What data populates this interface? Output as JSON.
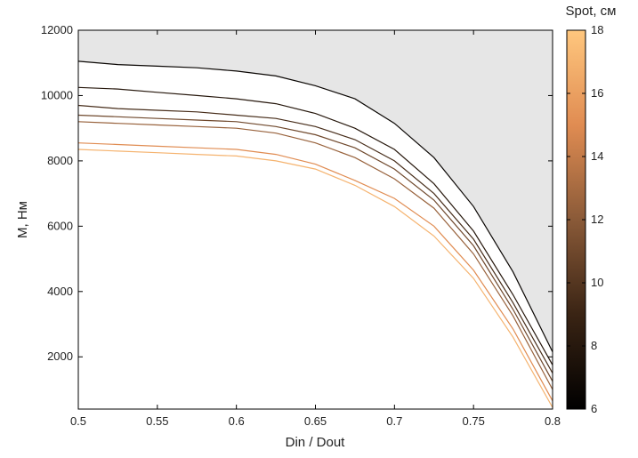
{
  "chart_data": {
    "type": "line",
    "xlabel": "Din / Dout",
    "ylabel": "M, Нм",
    "xlim": [
      0.5,
      0.8
    ],
    "ylim": [
      400,
      12000
    ],
    "xticks": [
      "0.5",
      "0.55",
      "0.6",
      "0.65",
      "0.7",
      "0.75",
      "0.8"
    ],
    "yticks": [
      "2000",
      "4000",
      "6000",
      "8000",
      "10000",
      "12000"
    ],
    "grid": false,
    "colorbar": {
      "title": "Spot, см",
      "min": 6,
      "max": 18,
      "ticks": [
        "6",
        "8",
        "10",
        "12",
        "14",
        "16",
        "18"
      ]
    },
    "x": [
      0.5,
      0.525,
      0.55,
      0.575,
      0.6,
      0.625,
      0.65,
      0.675,
      0.7,
      0.725,
      0.75,
      0.775,
      0.8
    ],
    "series": [
      {
        "color_value": 6.5,
        "values": [
          11050,
          10950,
          10900,
          10850,
          10750,
          10600,
          10300,
          9900,
          9150,
          8100,
          6600,
          4600,
          2150
        ]
      },
      {
        "color_value": 8.0,
        "values": [
          10250,
          10200,
          10100,
          10000,
          9900,
          9750,
          9450,
          9000,
          8350,
          7300,
          5850,
          3900,
          1750
        ]
      },
      {
        "color_value": 9.5,
        "values": [
          9700,
          9600,
          9550,
          9500,
          9400,
          9300,
          9050,
          8650,
          8000,
          7000,
          5600,
          3650,
          1500
        ]
      },
      {
        "color_value": 11.0,
        "values": [
          9400,
          9350,
          9300,
          9250,
          9200,
          9050,
          8800,
          8400,
          7750,
          6800,
          5400,
          3450,
          1250
        ]
      },
      {
        "color_value": 12.5,
        "values": [
          9200,
          9150,
          9100,
          9050,
          9000,
          8850,
          8550,
          8100,
          7450,
          6550,
          5150,
          3250,
          1000
        ]
      },
      {
        "color_value": 15.0,
        "values": [
          8550,
          8500,
          8450,
          8400,
          8350,
          8200,
          7900,
          7400,
          6850,
          6000,
          4650,
          2850,
          650
        ]
      },
      {
        "color_value": 17.0,
        "values": [
          8350,
          8300,
          8250,
          8200,
          8150,
          8000,
          7750,
          7250,
          6600,
          5700,
          4400,
          2600,
          450
        ]
      }
    ]
  }
}
